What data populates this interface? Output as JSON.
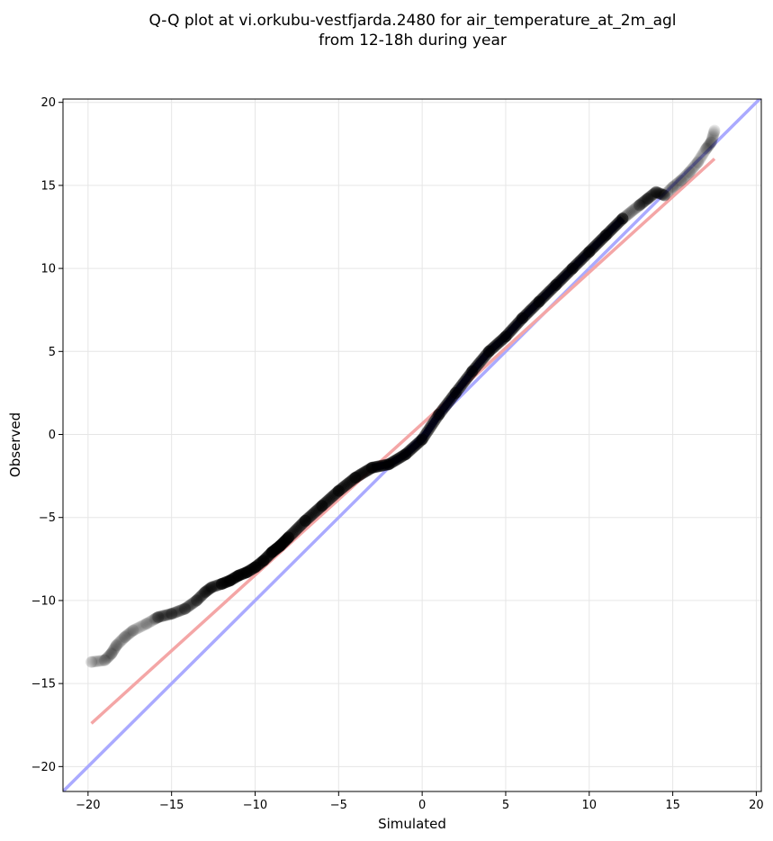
{
  "chart_data": {
    "type": "scatter",
    "title": "Q-Q plot at vi.orkubu-vestfjarda.2480 for air_temperature_at_2m_agl",
    "subtitle": "from 12-18h during year",
    "xlabel": "Simulated",
    "ylabel": "Observed",
    "xlim": [
      -21.5,
      20.3
    ],
    "ylim": [
      -21.5,
      20.2
    ],
    "xticks": [
      -20,
      -15,
      -10,
      -5,
      0,
      5,
      10,
      15,
      20
    ],
    "yticks": [
      -20,
      -15,
      -10,
      -5,
      0,
      5,
      10,
      15,
      20
    ],
    "xtick_labels": [
      "−20",
      "−15",
      "−10",
      "−5",
      "0",
      "5",
      "10",
      "15",
      "20"
    ],
    "ytick_labels": [
      "−20",
      "−15",
      "−10",
      "−5",
      "0",
      "5",
      "10",
      "15",
      "20"
    ],
    "grid": true,
    "legend": "none",
    "lines": [
      {
        "kind": "identity",
        "color": "#aaaaff",
        "x": [
          -21.5,
          20.3
        ],
        "y": [
          -21.5,
          20.3
        ]
      },
      {
        "kind": "fit",
        "color": "#f4a6a6",
        "x": [
          -19.8,
          17.5
        ],
        "y": [
          -17.4,
          16.6
        ]
      }
    ],
    "quantile_points": {
      "x": [
        -19.8,
        -19.0,
        -18.6,
        -18.3,
        -17.8,
        -17.3,
        -16.5,
        -15.8,
        -15.0,
        -14.2,
        -13.5,
        -13.0,
        -12.6,
        -12.0,
        -11.5,
        -11.0,
        -10.5,
        -10.0,
        -9.5,
        -9.0,
        -8.5,
        -8.0,
        -7.0,
        -6.0,
        -5.0,
        -4.0,
        -3.0,
        -2.0,
        -1.0,
        0.0,
        1.0,
        2.0,
        3.0,
        4.0,
        5.0,
        6.0,
        7.0,
        8.0,
        9.0,
        10.0,
        11.0,
        12.0,
        13.0,
        13.5,
        14.0,
        14.5,
        15.0,
        15.5,
        16.0,
        16.5,
        17.0,
        17.3,
        17.5
      ],
      "y": [
        -13.7,
        -13.6,
        -13.2,
        -12.7,
        -12.2,
        -11.8,
        -11.4,
        -11.0,
        -10.8,
        -10.5,
        -10.0,
        -9.5,
        -9.2,
        -9.0,
        -8.8,
        -8.5,
        -8.3,
        -8.0,
        -7.6,
        -7.1,
        -6.7,
        -6.2,
        -5.2,
        -4.3,
        -3.4,
        -2.6,
        -2.0,
        -1.8,
        -1.2,
        -0.3,
        1.2,
        2.5,
        3.8,
        5.0,
        5.9,
        7.0,
        8.0,
        9.0,
        10.0,
        11.0,
        12.0,
        13.0,
        13.8,
        14.2,
        14.6,
        14.4,
        14.9,
        15.3,
        15.8,
        16.4,
        17.2,
        17.6,
        18.3
      ]
    },
    "marker_color": "#000000",
    "under_trace_color": "#000080"
  }
}
